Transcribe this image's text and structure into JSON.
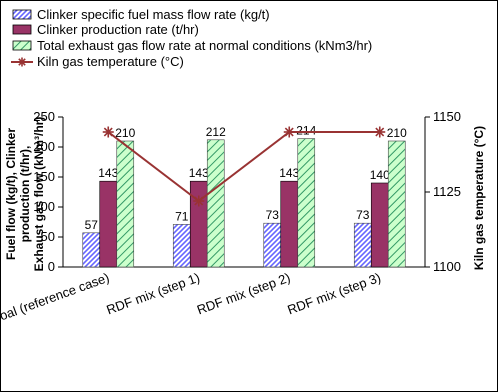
{
  "chart_data": {
    "type": "bar",
    "categories": [
      "Coal (reference case)",
      "RDF mix (step 1)",
      "RDF mix (step 2)",
      "RDF mix (step 3)"
    ],
    "series": [
      {
        "name": "Clinker specific fuel mass flow rate (kg/t)",
        "kind": "bar",
        "axis": "left",
        "values": [
          57,
          71,
          73,
          73
        ],
        "color": "#6666ff",
        "pattern": "diagonal-hatch"
      },
      {
        "name": "Clinker production rate (t/hr)",
        "kind": "bar",
        "axis": "left",
        "values": [
          143,
          143,
          143,
          140
        ],
        "color": "#993366",
        "pattern": "solid"
      },
      {
        "name": "Total exhaust gas flow rate at normal conditions (kNm3/hr)",
        "kind": "bar",
        "axis": "left",
        "values": [
          210,
          212,
          214,
          210
        ],
        "color": "#339966",
        "pattern": "diagonal-hatch-light"
      },
      {
        "name": "Kiln gas temperature (°C)",
        "kind": "line",
        "axis": "right",
        "values": [
          1145,
          1122,
          1145,
          1145
        ],
        "color": "#993333",
        "marker": "star"
      }
    ],
    "y_left": {
      "title_lines": [
        "Fuel flow (kg/t), Clinker",
        "production (t/hr),",
        "Exhaust gas flow (kNm³/hr)"
      ],
      "range": [
        0,
        250
      ],
      "ticks": [
        "0",
        "50",
        "100",
        "150",
        "200",
        "250"
      ]
    },
    "y_right": {
      "title": "Kiln gas temperature (°C)",
      "range": [
        1100,
        1150
      ],
      "ticks": [
        "1100",
        "1125",
        "1150"
      ]
    },
    "legend_position": "top",
    "grid": false
  }
}
